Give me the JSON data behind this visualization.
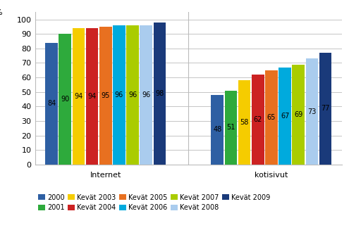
{
  "groups": [
    "Internet",
    "kotisivut"
  ],
  "series": [
    {
      "label": "2000",
      "internet": 84,
      "kotisivut": 48,
      "color": "#2E5FA3"
    },
    {
      "label": "2001",
      "internet": 90,
      "kotisivut": 51,
      "color": "#2EAA3C"
    },
    {
      "label": "Kevät 2003",
      "internet": 94,
      "kotisivut": 58,
      "color": "#F5CC00"
    },
    {
      "label": "Kevät 2004",
      "internet": 94,
      "kotisivut": 62,
      "color": "#CC2222"
    },
    {
      "label": "Kevät 2005",
      "internet": 95,
      "kotisivut": 65,
      "color": "#E87020"
    },
    {
      "label": "Kevät 2006",
      "internet": 96,
      "kotisivut": 67,
      "color": "#00AADD"
    },
    {
      "label": "Kevät 2007",
      "internet": 96,
      "kotisivut": 69,
      "color": "#AACC00"
    },
    {
      "label": "Kevät 2008",
      "internet": 96,
      "kotisivut": 73,
      "color": "#AACCEE"
    },
    {
      "label": "Kevät 2009",
      "internet": 98,
      "kotisivut": 77,
      "color": "#1A3A7A"
    }
  ],
  "ylabel": "%",
  "ylim": [
    0,
    105
  ],
  "yticks": [
    0,
    10,
    20,
    30,
    40,
    50,
    60,
    70,
    80,
    90,
    100
  ],
  "background_color": "#FFFFFF",
  "grid_color": "#BBBBBB",
  "text_color": "#000000",
  "label_fontsize": 7,
  "axis_fontsize": 8,
  "legend_fontsize": 7
}
